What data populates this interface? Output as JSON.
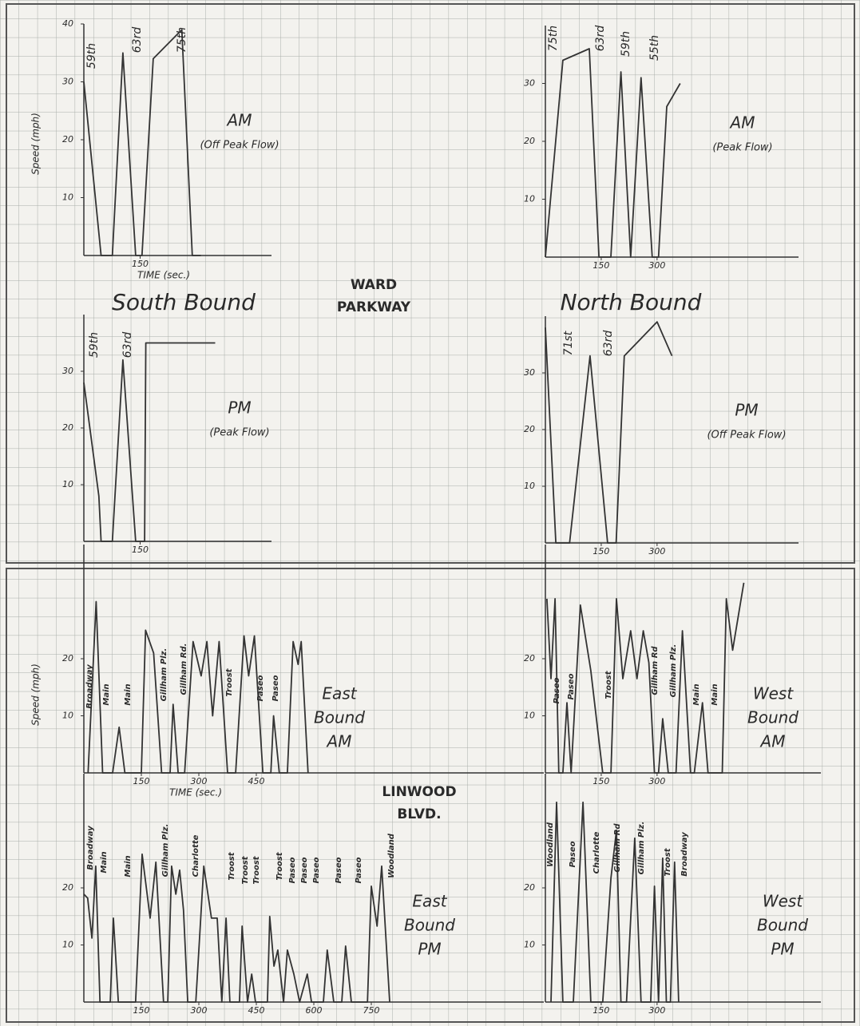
{
  "chart_data": [
    {
      "type": "line",
      "title": [
        "AM",
        "(Off Peak Flow)"
      ],
      "x_label": "TIME (sec.)",
      "y_label": "Speed (mph)",
      "annotations": [
        "59th",
        "63rd",
        "75th"
      ],
      "xlim": [
        0,
        500
      ],
      "ylim": [
        0,
        40
      ],
      "xticks": [
        150
      ],
      "yticks": [
        10,
        20,
        30,
        40
      ],
      "color": "#333333",
      "x": [
        0,
        46,
        76,
        104,
        138,
        155,
        185,
        261,
        289,
        312
      ],
      "values": [
        30,
        0,
        0,
        35,
        0,
        0,
        34,
        39,
        0,
        0
      ]
    },
    {
      "type": "line",
      "title": [
        "AM",
        "(Peak Flow)"
      ],
      "annotations": [
        "75th",
        "63rd",
        "59th",
        "55th"
      ],
      "xlim": [
        0,
        680
      ],
      "ylim": [
        0,
        40
      ],
      "xticks": [
        150,
        300
      ],
      "yticks": [
        10,
        20,
        30
      ],
      "color": "#333333",
      "x": [
        0,
        47,
        118,
        144,
        176,
        203,
        229,
        257,
        287,
        304,
        326,
        362
      ],
      "values": [
        0,
        34,
        36,
        0,
        0,
        32,
        0,
        31,
        0,
        0,
        26,
        30
      ]
    },
    {
      "type": "line",
      "title": [
        "PM",
        "(Peak Flow)"
      ],
      "annotations": [
        "59th",
        "63rd"
      ],
      "xlim": [
        0,
        500
      ],
      "ylim": [
        0,
        40
      ],
      "xticks": [
        150
      ],
      "yticks": [
        10,
        20,
        30
      ],
      "color": "#333333",
      "x": [
        0,
        40,
        46,
        76,
        104,
        138,
        162,
        165,
        350
      ],
      "values": [
        28,
        8,
        0,
        0,
        32,
        0,
        0,
        35,
        35
      ]
    },
    {
      "type": "line",
      "title": [
        "PM",
        "(Off Peak Flow)"
      ],
      "annotations": [
        "71st",
        "63rd"
      ],
      "xlim": [
        0,
        680
      ],
      "ylim": [
        0,
        40
      ],
      "xticks": [
        150,
        300
      ],
      "yticks": [
        10,
        20,
        30
      ],
      "color": "#333333",
      "x": [
        0,
        28,
        65,
        120,
        167,
        190,
        212,
        300,
        340
      ],
      "values": [
        38,
        0,
        0,
        33,
        0,
        0,
        33,
        39,
        33
      ]
    },
    {
      "type": "line",
      "title": [
        "East",
        "Bound",
        "AM"
      ],
      "x_label": "TIME (sec.)",
      "y_label": "Speed (mph)",
      "annotations": [
        "Broadway",
        "Main",
        "Main",
        "Gillham Plz.",
        "Gillham Rd.",
        "Troost",
        "Paseo",
        "Paseo"
      ],
      "xlim": [
        0,
        1200
      ],
      "ylim": [
        0,
        40
      ],
      "xticks": [
        150,
        300,
        450
      ],
      "yticks": [
        10,
        20
      ],
      "color": "#333333",
      "x": [
        11,
        32,
        49,
        75,
        92,
        107,
        150,
        161,
        182,
        203,
        225,
        233,
        246,
        263,
        285,
        306,
        321,
        336,
        353,
        375,
        396,
        418,
        430,
        445,
        467,
        488,
        495,
        510,
        531,
        546,
        559,
        567,
        585
      ],
      "values": [
        0,
        30,
        0,
        0,
        8,
        0,
        0,
        25,
        21,
        0,
        0,
        12,
        0,
        0,
        23,
        17,
        23,
        10,
        23,
        0,
        0,
        24,
        17,
        24,
        0,
        0,
        10,
        0,
        0,
        23,
        19,
        23,
        0
      ]
    },
    {
      "type": "line",
      "title": [
        "West",
        "Bound",
        "AM"
      ],
      "annotations": [
        "Paseo",
        "Paseo",
        "Troost",
        "Gillham Rd",
        "Gillham Plz.",
        "Main",
        "Main"
      ],
      "xlim": [
        0,
        740
      ],
      "ylim": [
        0,
        40
      ],
      "xticks": [
        150,
        300
      ],
      "yticks": [
        10,
        20
      ],
      "color": "#333333",
      "x": [
        4,
        15,
        26,
        36,
        47,
        58,
        69,
        94,
        122,
        154,
        176,
        191,
        208,
        229,
        246,
        263,
        278,
        293,
        304,
        315,
        330,
        351,
        368,
        390,
        400,
        422,
        437,
        475,
        486,
        503,
        533
      ],
      "values": [
        30.5,
        16.5,
        30.5,
        0,
        0,
        12.3,
        0,
        29.4,
        17.9,
        0,
        0,
        30.5,
        16.5,
        24.9,
        16.5,
        24.9,
        19.3,
        0,
        0,
        9.5,
        0,
        0,
        24.9,
        0,
        0,
        12.3,
        0,
        0,
        30.5,
        21.5,
        33.3
      ]
    },
    {
      "type": "line",
      "title": [
        "East",
        "Bound",
        "PM"
      ],
      "annotations": [
        "Broadway",
        "Main",
        "Main",
        "Gillham Plz.",
        "Charlotte",
        "Troost",
        "Troost",
        "Troost",
        "Troost",
        "Paseo",
        "Paseo",
        "Paseo",
        "Paseo",
        "Paseo",
        "Woodland"
      ],
      "xlim": [
        0,
        1200
      ],
      "ylim": [
        0,
        40
      ],
      "xticks": [
        150,
        300,
        450,
        600,
        750
      ],
      "yticks": [
        10,
        20
      ],
      "color": "#333333",
      "x": [
        0,
        10,
        21,
        31,
        42,
        69,
        77,
        90,
        135,
        152,
        173,
        188,
        208,
        219,
        229,
        240,
        250,
        260,
        271,
        292,
        313,
        333,
        348,
        360,
        371,
        381,
        406,
        413,
        427,
        438,
        448,
        479,
        485,
        496,
        506,
        521,
        531,
        548,
        563,
        583,
        594,
        625,
        635,
        652,
        673,
        683,
        698,
        740,
        750,
        765,
        777,
        798
      ],
      "values": [
        18.9,
        18.2,
        11.2,
        23.8,
        0,
        0,
        14.7,
        0,
        0,
        25.9,
        14.7,
        24.5,
        0,
        0,
        23.8,
        18.9,
        23.1,
        16.1,
        0,
        0,
        23.8,
        14.7,
        14.7,
        0,
        14.7,
        0,
        0,
        13.3,
        0,
        4.9,
        0,
        0,
        15,
        6.3,
        9.1,
        0,
        9.1,
        4.9,
        0,
        4.9,
        0,
        0,
        9.1,
        0,
        0,
        9.8,
        0,
        0,
        20.3,
        13.3,
        23.8,
        0
      ]
    },
    {
      "type": "line",
      "title": [
        "West",
        "Bound",
        "PM"
      ],
      "annotations": [
        "Woodland",
        "Paseo",
        "Charlotte",
        "Gillham Rd",
        "Gillham Plz.",
        "Troost",
        "Broadway"
      ],
      "xlim": [
        0,
        740
      ],
      "ylim": [
        0,
        40
      ],
      "xticks": [
        150,
        300
      ],
      "yticks": [
        10,
        20
      ],
      "color": "#333333",
      "x": [
        15,
        30,
        47,
        75,
        101,
        122,
        154,
        176,
        191,
        203,
        218,
        240,
        257,
        283,
        293,
        304,
        315,
        325,
        336,
        347,
        358
      ],
      "values": [
        0,
        35,
        0,
        0,
        35,
        0,
        0,
        21.7,
        30.1,
        0,
        0,
        28.7,
        0,
        0,
        20.3,
        0,
        25.2,
        0,
        0,
        24.5,
        0
      ]
    }
  ],
  "labels": [
    "South Bound",
    "WARD",
    "PARKWAY",
    "North Bound",
    "LINWOOD",
    "BLVD."
  ]
}
